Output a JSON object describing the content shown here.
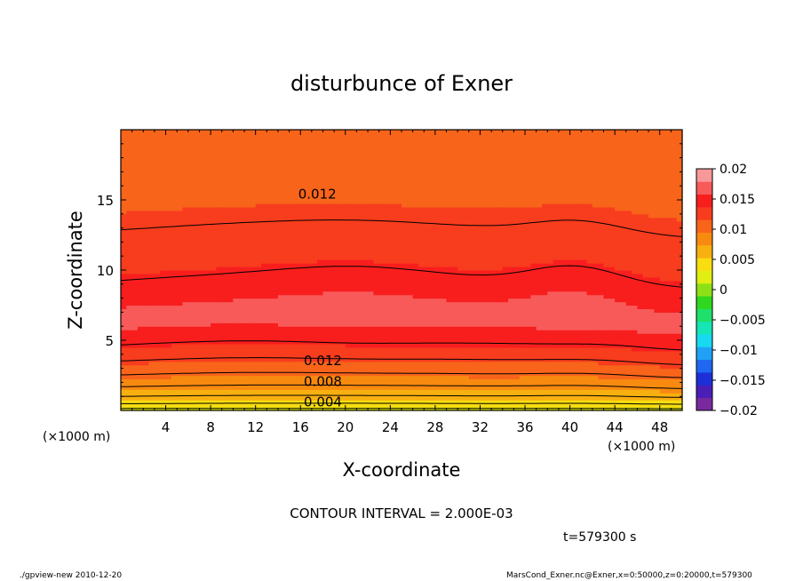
{
  "chart_data": {
    "type": "heatmap",
    "title": "disturbunce of Exner",
    "xlabel": "X-coordinate",
    "ylabel": "Z-coordinate",
    "x_unit_label": "(×1000 m)",
    "y_unit_label": "(×1000 m)",
    "xlim": [
      0,
      50
    ],
    "ylim": [
      0,
      20
    ],
    "x_ticks": [
      4,
      8,
      12,
      16,
      20,
      24,
      28,
      32,
      36,
      40,
      44,
      48
    ],
    "x_tick_labels": [
      "4",
      "8",
      "12",
      "16",
      "20",
      "24",
      "28",
      "32",
      "36",
      "40",
      "44",
      "48"
    ],
    "y_ticks": [
      5,
      10,
      15
    ],
    "y_tick_labels": [
      "5",
      "10",
      "15"
    ],
    "colorbar": {
      "range": [
        -0.02,
        0.02
      ],
      "ticks": [
        0.02,
        0.015,
        0.01,
        0.005,
        0,
        -0.005,
        -0.01,
        -0.015,
        -0.02
      ],
      "tick_labels": [
        "0.02",
        "0.015",
        "0.01",
        "0.005",
        "0",
        "−0.005",
        "−0.01",
        "−0.015",
        "−0.02"
      ],
      "colors": [
        "#7a2a9e",
        "#4a1fb8",
        "#1c2fd8",
        "#1f66f0",
        "#1fa2f5",
        "#17d9f0",
        "#16e5b5",
        "#1ee06a",
        "#2fd81e",
        "#8ee016",
        "#e0ee12",
        "#f8dd10",
        "#f8b010",
        "#f88a10",
        "#f8641a",
        "#f83c1e",
        "#f81e1e",
        "#f85a5a",
        "#f89898"
      ]
    },
    "contour_interval": "CONTOUR INTERVAL = 2.000E-03",
    "contour_labels": [
      "0.012",
      "0.012",
      "0.008",
      "0.004"
    ],
    "field_summary": {
      "surface_value": 0.0,
      "max_value": 0.0168,
      "max_height_km": 6.5,
      "top_value": 0.01
    },
    "time_label": "t=579300 s"
  },
  "footer": {
    "left": "./gpview-new   2010-12-20",
    "right": "MarsCond_Exner.nc@Exner,x=0:50000,z=0:20000,t=579300"
  }
}
